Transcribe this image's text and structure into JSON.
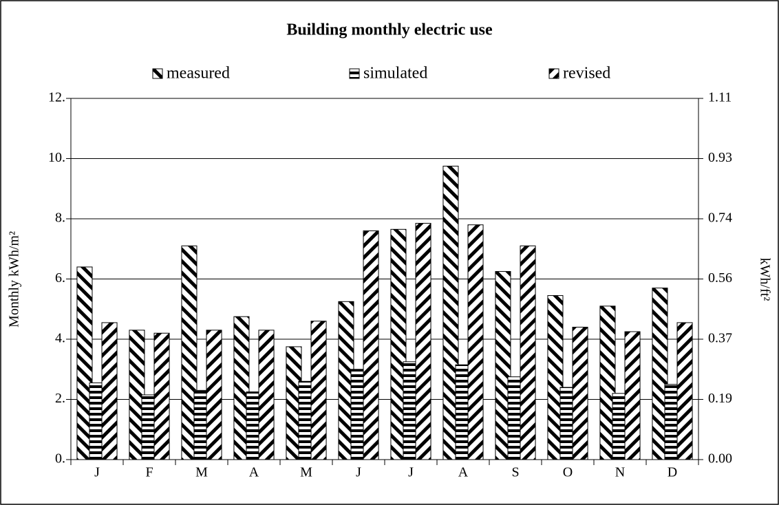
{
  "chart_data": {
    "type": "bar",
    "title": "Building monthly electric use",
    "categories": [
      "J",
      "F",
      "M",
      "A",
      "M",
      "J",
      "J",
      "A",
      "S",
      "O",
      "N",
      "D"
    ],
    "series": [
      {
        "name": "measured",
        "color": "#000000",
        "pattern": "backslash",
        "values": [
          6.4,
          4.3,
          7.1,
          4.75,
          3.75,
          5.25,
          7.65,
          9.75,
          6.25,
          5.45,
          5.1,
          5.7
        ]
      },
      {
        "name": "simulated",
        "color": "#000000",
        "pattern": "horizontal",
        "values": [
          2.55,
          2.15,
          2.3,
          2.25,
          2.6,
          3.0,
          3.25,
          3.15,
          2.75,
          2.4,
          2.2,
          2.5
        ]
      },
      {
        "name": "revised",
        "color": "#000000",
        "pattern": "slash",
        "values": [
          4.55,
          4.2,
          4.3,
          4.3,
          4.6,
          7.6,
          7.85,
          7.8,
          7.1,
          4.4,
          4.25,
          4.55
        ]
      }
    ],
    "ylabel": "Monthly kWh/m²",
    "y2label": "kWh/ft²",
    "ylim": [
      0,
      12
    ],
    "yticks": [
      {
        "value": 0,
        "label": "0."
      },
      {
        "value": 2,
        "label": "2."
      },
      {
        "value": 4,
        "label": "4."
      },
      {
        "value": 6,
        "label": "6."
      },
      {
        "value": 8,
        "label": "8."
      },
      {
        "value": 10,
        "label": "10."
      },
      {
        "value": 12,
        "label": "12."
      }
    ],
    "y2lim": [
      0,
      1.1148
    ],
    "y2ticks": [
      {
        "value": 0,
        "label": "0.00"
      },
      {
        "value": 0.1858,
        "label": "0.19"
      },
      {
        "value": 0.3716,
        "label": "0.37"
      },
      {
        "value": 0.5574,
        "label": "0.56"
      },
      {
        "value": 0.7432,
        "label": "0.74"
      },
      {
        "value": 0.929,
        "label": "0.93"
      },
      {
        "value": 1.1148,
        "label": "1.11"
      }
    ],
    "grid": true,
    "legend": "top"
  }
}
